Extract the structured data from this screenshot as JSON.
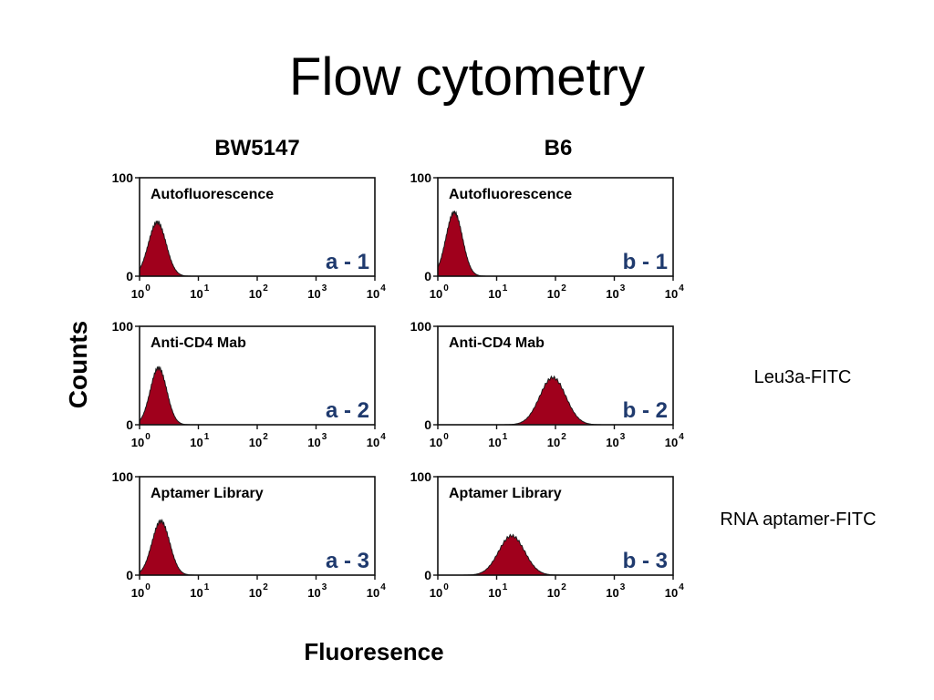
{
  "slide_title": "Flow cytometry",
  "side_labels": [
    "Leu3a-FITC",
    "RNA aptamer-FITC"
  ],
  "colors": {
    "fill": "#a0001c",
    "outline": "#1a1a1a",
    "panel_label": "#1f3a6e"
  },
  "chart_data": {
    "type": "area",
    "ylabel": "Counts",
    "xlabel": "Fluoresence",
    "column_titles": [
      "BW5147",
      "B6"
    ],
    "x_scale": "log",
    "xlim": [
      1,
      10000
    ],
    "ylim": [
      0,
      100
    ],
    "x_tick_values": [
      1,
      10,
      100,
      1000,
      10000
    ],
    "x_tick_base": [
      "10",
      "10",
      "10",
      "10",
      "10"
    ],
    "x_tick_exp": [
      "0",
      "1",
      "2",
      "3",
      "4"
    ],
    "y_tick_labels": [
      "100",
      "0"
    ],
    "panels": [
      {
        "id": "a-1",
        "label": "a - 1",
        "title": "Autofluorescence",
        "column": 0,
        "row": 0,
        "peak_x": 2.0,
        "peak_y": 55,
        "width": 0.15
      },
      {
        "id": "b-1",
        "label": "b - 1",
        "title": "Autofluorescence",
        "column": 1,
        "row": 0,
        "peak_x": 1.9,
        "peak_y": 65,
        "width": 0.14
      },
      {
        "id": "a-2",
        "label": "a - 2",
        "title": "Anti-CD4 Mab",
        "column": 0,
        "row": 1,
        "peak_x": 2.1,
        "peak_y": 58,
        "width": 0.14
      },
      {
        "id": "b-2",
        "label": "b - 2",
        "title": "Anti-CD4 Mab",
        "column": 1,
        "row": 1,
        "peak_x": 90,
        "peak_y": 48,
        "width": 0.22
      },
      {
        "id": "a-3",
        "label": "a - 3",
        "title": "Aptamer Library",
        "column": 0,
        "row": 2,
        "peak_x": 2.3,
        "peak_y": 55,
        "width": 0.15
      },
      {
        "id": "b-3",
        "label": "b - 3",
        "title": "Aptamer Library",
        "column": 1,
        "row": 2,
        "peak_x": 18,
        "peak_y": 40,
        "width": 0.22
      }
    ]
  }
}
